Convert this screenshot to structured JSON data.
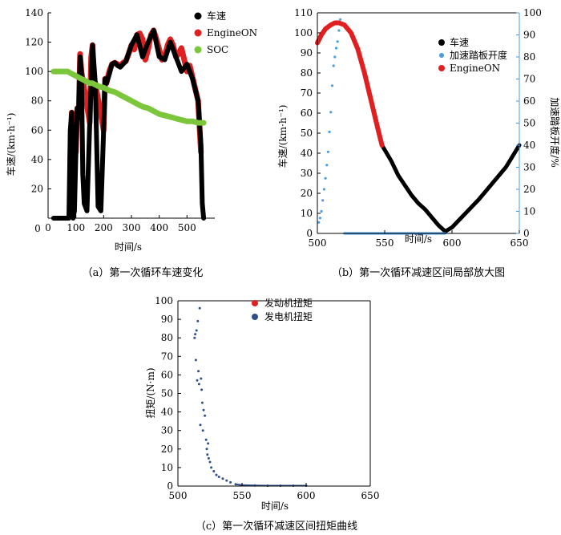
{
  "chart_data": [
    {
      "type": "line",
      "caption": "（a）第一次循环车速变化",
      "xlabel": "时间/s",
      "ylabel": "车速/(km·h⁻¹)",
      "xlim": [
        0,
        600
      ],
      "ylim": [
        0,
        140
      ],
      "xticks": [
        0,
        100,
        200,
        300,
        400,
        500
      ],
      "yticks": [
        20,
        40,
        60,
        80,
        100,
        120,
        140
      ],
      "grid": false,
      "legend_position": "top-right",
      "series": [
        {
          "name": "车速",
          "color": "#000000",
          "x": [
            20,
            75,
            80,
            85,
            90,
            95,
            100,
            105,
            110,
            115,
            120,
            125,
            130,
            140,
            150,
            160,
            170,
            180,
            190,
            200,
            205,
            210,
            220,
            230,
            240,
            250,
            260,
            270,
            280,
            300,
            320,
            340,
            360,
            380,
            400,
            420,
            440,
            460,
            480,
            500,
            520,
            540,
            550,
            555,
            560
          ],
          "y": [
            0,
            0,
            60,
            72,
            0,
            5,
            45,
            75,
            68,
            110,
            100,
            30,
            10,
            5,
            65,
            118,
            92,
            8,
            5,
            60,
            95,
            92,
            98,
            105,
            106,
            104,
            103,
            105,
            107,
            118,
            125,
            110,
            120,
            128,
            110,
            108,
            120,
            110,
            100,
            105,
            95,
            80,
            50,
            10,
            0
          ]
        },
        {
          "name": "EngineON",
          "color": "#e02020",
          "x": [
            80,
            85,
            90,
            100,
            105,
            110,
            115,
            120,
            150,
            155,
            160,
            165,
            170,
            200,
            205,
            210,
            215,
            220,
            230,
            240,
            250,
            260,
            270,
            280,
            290,
            300,
            310,
            320,
            330,
            340,
            350,
            360,
            370,
            380,
            390,
            400,
            410,
            420,
            430,
            440,
            450,
            460,
            470,
            480,
            490,
            500,
            510,
            520,
            530,
            540,
            550
          ],
          "y": [
            40,
            72,
            70,
            45,
            75,
            70,
            112,
            100,
            65,
            110,
            118,
            95,
            92,
            60,
            95,
            92,
            96,
            100,
            105,
            106,
            105,
            104,
            106,
            107,
            112,
            118,
            115,
            125,
            126,
            122,
            108,
            115,
            125,
            128,
            122,
            115,
            108,
            110,
            118,
            122,
            118,
            110,
            112,
            116,
            108,
            100,
            104,
            96,
            88,
            80,
            45
          ]
        },
        {
          "name": "SOC",
          "color": "#7cc63c",
          "x": [
            20,
            50,
            70,
            80,
            100,
            120,
            140,
            150,
            160,
            180,
            200,
            220,
            240,
            260,
            280,
            300,
            320,
            340,
            360,
            380,
            400,
            420,
            440,
            460,
            480,
            500,
            520,
            540,
            550,
            560
          ],
          "y": [
            100,
            100,
            100,
            99,
            97,
            95,
            93,
            92,
            92,
            90,
            89,
            87,
            86,
            84,
            82,
            80,
            78,
            76,
            75,
            73,
            71,
            70,
            69,
            68,
            67,
            66,
            66,
            65,
            65,
            65
          ]
        }
      ]
    },
    {
      "type": "line",
      "caption": "（b）第一次循环减速区间局部放大图",
      "xlabel": "时间/s",
      "ylabel": "车速/(km·h⁻¹)",
      "ylabel_right": "加速踏板开度/%",
      "xlim": [
        500,
        650
      ],
      "ylim": [
        0,
        110
      ],
      "ylim_right": [
        0,
        100
      ],
      "xticks": [
        500,
        550,
        600,
        650
      ],
      "yticks": [
        0,
        10,
        20,
        30,
        40,
        50,
        60,
        70,
        80,
        90,
        100,
        110
      ],
      "yticks_right": [
        0,
        10,
        20,
        30,
        40,
        50,
        60,
        70,
        80,
        90,
        100
      ],
      "grid": false,
      "legend_position": "top-right",
      "series": [
        {
          "name": "车速",
          "color": "#000000",
          "x": [
            548,
            555,
            560,
            565,
            570,
            575,
            580,
            585,
            590,
            595,
            600,
            610,
            620,
            630,
            640,
            650
          ],
          "y": [
            44,
            36,
            29,
            24,
            19,
            15,
            12,
            8,
            4,
            1,
            3,
            10,
            17,
            25,
            33,
            44
          ]
        },
        {
          "name": "加速踏板开度",
          "color": "#4a9be0",
          "axis": "right",
          "x": [
            501,
            502,
            503,
            504,
            505,
            506,
            507,
            508,
            509,
            510,
            511,
            512,
            513,
            514,
            515,
            516,
            517,
            520,
            530,
            540,
            550,
            560,
            570,
            580,
            590,
            595
          ],
          "y": [
            5,
            7,
            10,
            15,
            20,
            25,
            31,
            37,
            46,
            55,
            67,
            76,
            80,
            84,
            87,
            92,
            97,
            0,
            0,
            0,
            0,
            0,
            0,
            0,
            0,
            0
          ]
        },
        {
          "name": "EngineON",
          "color": "#e02020",
          "x": [
            500,
            503,
            506,
            510,
            513,
            516,
            520,
            525,
            530,
            535,
            540,
            545,
            548
          ],
          "y": [
            95,
            99,
            102,
            104,
            105,
            105,
            104,
            100,
            92,
            80,
            66,
            52,
            44
          ]
        }
      ]
    },
    {
      "type": "scatter",
      "caption": "（c）第一次循环减速区间扭矩曲线",
      "xlabel": "时间/s",
      "ylabel": "扭矩/(N·m)",
      "xlim": [
        500,
        650
      ],
      "ylim": [
        0,
        100
      ],
      "xticks": [
        500,
        550,
        600,
        650
      ],
      "yticks": [
        0,
        10,
        20,
        30,
        40,
        50,
        60,
        70,
        80,
        90,
        100
      ],
      "grid": false,
      "legend_position": "top-right",
      "series": [
        {
          "name": "发动机扭矩",
          "color": "#e02020",
          "x": [],
          "y": []
        },
        {
          "name": "发电机扭矩",
          "color": "#2f4f8a",
          "x": [
            513,
            513.5,
            514,
            514.5,
            515,
            515.5,
            516,
            516.5,
            517,
            517.5,
            518,
            518.5,
            519,
            519.5,
            520,
            521,
            522,
            522.5,
            523,
            523.5,
            524,
            525,
            526,
            528,
            530,
            532,
            535,
            538,
            541,
            545,
            550,
            560,
            570,
            580,
            590,
            600
          ],
          "y": [
            80,
            82,
            68,
            84,
            57,
            89,
            62,
            55,
            96,
            33,
            58,
            52,
            45,
            30,
            41,
            38,
            25,
            20,
            17,
            23,
            15,
            13,
            10,
            8,
            6,
            5,
            4,
            3,
            2,
            1,
            0.5,
            0.3,
            0.2,
            0.2,
            0.2,
            0.2
          ]
        }
      ]
    }
  ]
}
